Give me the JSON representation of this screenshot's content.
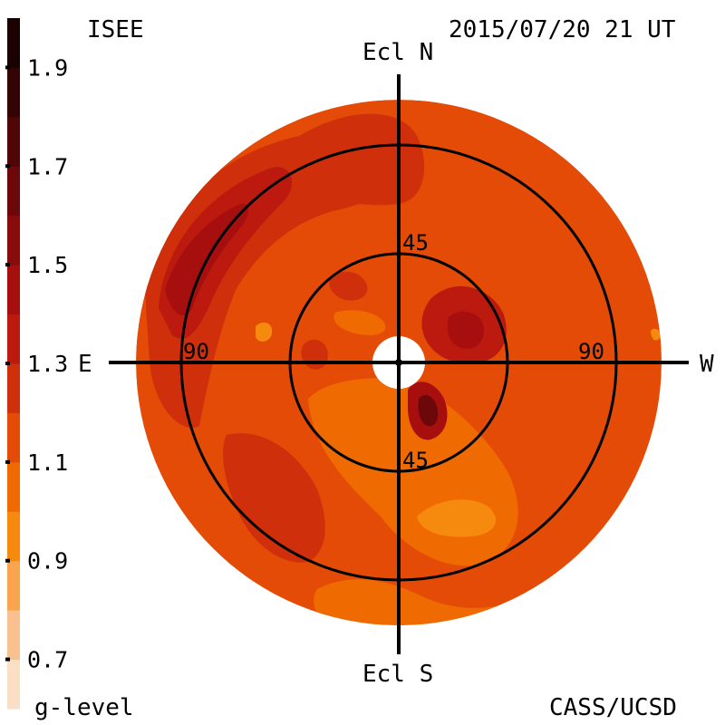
{
  "header": {
    "source": "ISEE",
    "datetime": "2015/07/20 21 UT"
  },
  "footer": {
    "legend_label": "g-level",
    "credit": "CASS/UCSD"
  },
  "axes": {
    "north": "Ecl N",
    "south": "Ecl S",
    "east": "E",
    "west": "W",
    "ring_labels": {
      "inner_north": "45",
      "inner_south": "45",
      "outer_east": "90",
      "outer_west": "90"
    }
  },
  "colorbar": {
    "tick_labels": [
      "1.9",
      "1.7",
      "1.5",
      "1.3",
      "1.1",
      "0.9",
      "0.7"
    ],
    "tick_values": [
      1.9,
      1.7,
      1.5,
      1.3,
      1.1,
      0.9,
      0.7
    ],
    "range": [
      0.6,
      2.0
    ],
    "bands": [
      {
        "from": 0.6,
        "to": 0.7,
        "color": "#fbdfc4"
      },
      {
        "from": 0.7,
        "to": 0.8,
        "color": "#f9c18f"
      },
      {
        "from": 0.8,
        "to": 0.9,
        "color": "#f8a54d"
      },
      {
        "from": 0.9,
        "to": 1.0,
        "color": "#f58a0e"
      },
      {
        "from": 1.0,
        "to": 1.1,
        "color": "#f06a02"
      },
      {
        "from": 1.1,
        "to": 1.2,
        "color": "#e34b07"
      },
      {
        "from": 1.2,
        "to": 1.3,
        "color": "#cf300b"
      },
      {
        "from": 1.3,
        "to": 1.4,
        "color": "#bc1a0e"
      },
      {
        "from": 1.4,
        "to": 1.5,
        "color": "#a70f0e"
      },
      {
        "from": 1.5,
        "to": 1.6,
        "color": "#8a0b0c"
      },
      {
        "from": 1.6,
        "to": 1.7,
        "color": "#6d080a"
      },
      {
        "from": 1.7,
        "to": 1.8,
        "color": "#500607"
      },
      {
        "from": 1.8,
        "to": 1.9,
        "color": "#340404"
      },
      {
        "from": 1.9,
        "to": 2.0,
        "color": "#1a0202"
      }
    ]
  },
  "map_colors": {
    "base": "#e34b07",
    "dark": "#cf300b",
    "darker": "#bc1a0e",
    "darkest": "#a70f0e",
    "core": "#6d080a",
    "light": "#f06a02",
    "lighter": "#f58a0e"
  }
}
